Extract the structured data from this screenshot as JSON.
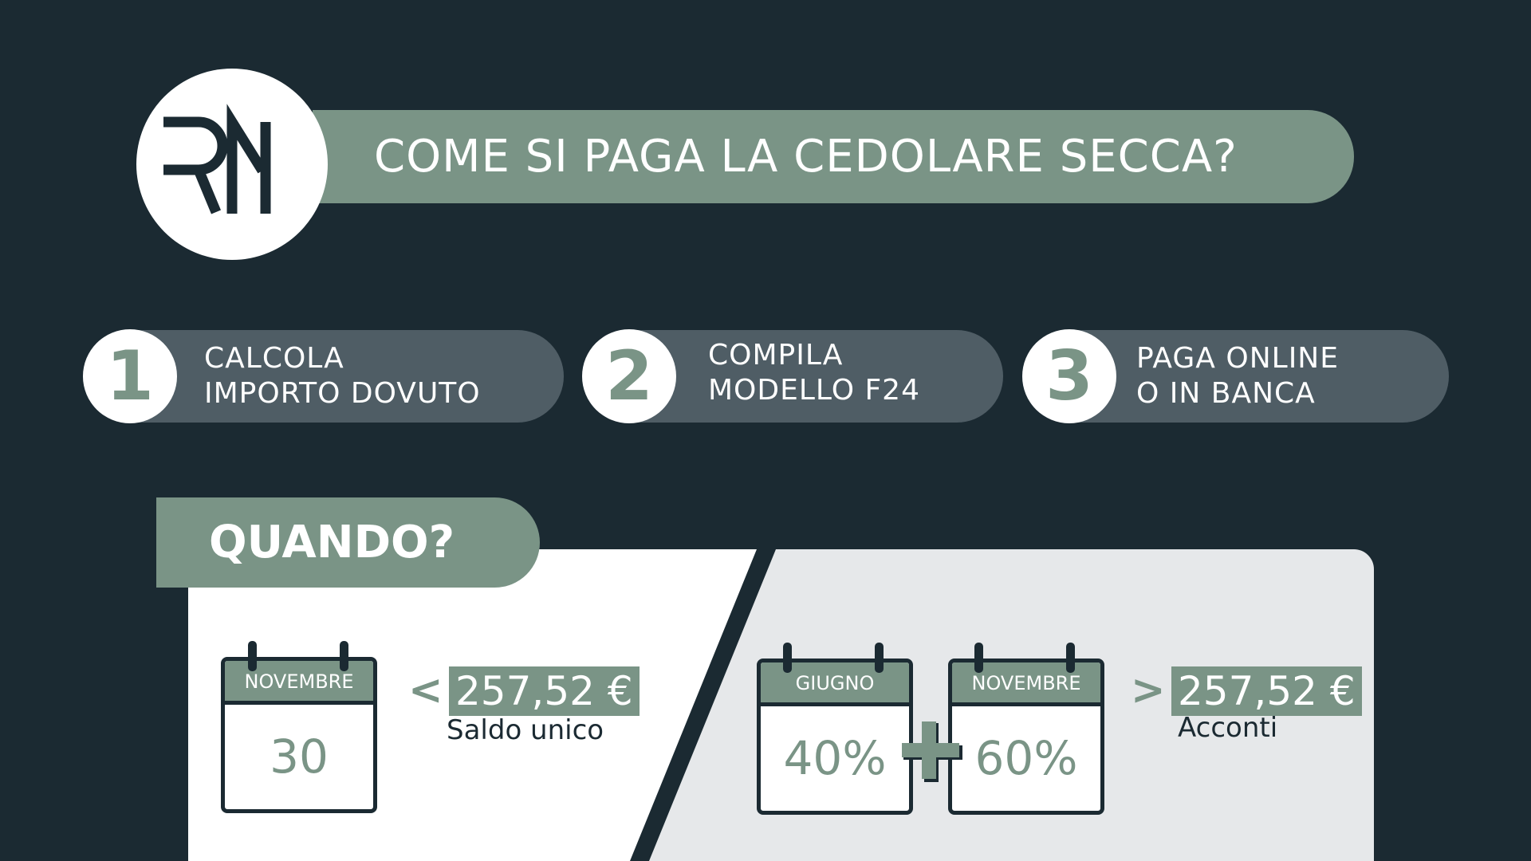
{
  "logo": {
    "text": "RM"
  },
  "title": "COME SI PAGA LA CEDOLARE SECCA?",
  "steps": [
    {
      "number": "1",
      "line1": "CALCOLA",
      "line2": "IMPORTO DOVUTO"
    },
    {
      "number": "2",
      "line1": "COMPILA",
      "line2": "MODELLO F24"
    },
    {
      "number": "3",
      "line1": "PAGA ONLINE",
      "line2": "O IN BANCA"
    }
  ],
  "when": {
    "title": "QUANDO?",
    "single": {
      "month": "NOVEMBRE",
      "day": "30",
      "comparator": "<",
      "amount": "257,52 €",
      "label": "Saldo unico"
    },
    "split": {
      "first": {
        "month": "GIUGNO",
        "value": "40%"
      },
      "plus": "+",
      "second": {
        "month": "NOVEMBRE",
        "value": "60%"
      },
      "comparator": ">",
      "amount": "257,52 €",
      "label": "Acconti"
    }
  },
  "colors": {
    "background": "#1b2a32",
    "accent": "#7a9486",
    "pill": "#4f5d65",
    "panel_light": "#e6e8ea"
  }
}
